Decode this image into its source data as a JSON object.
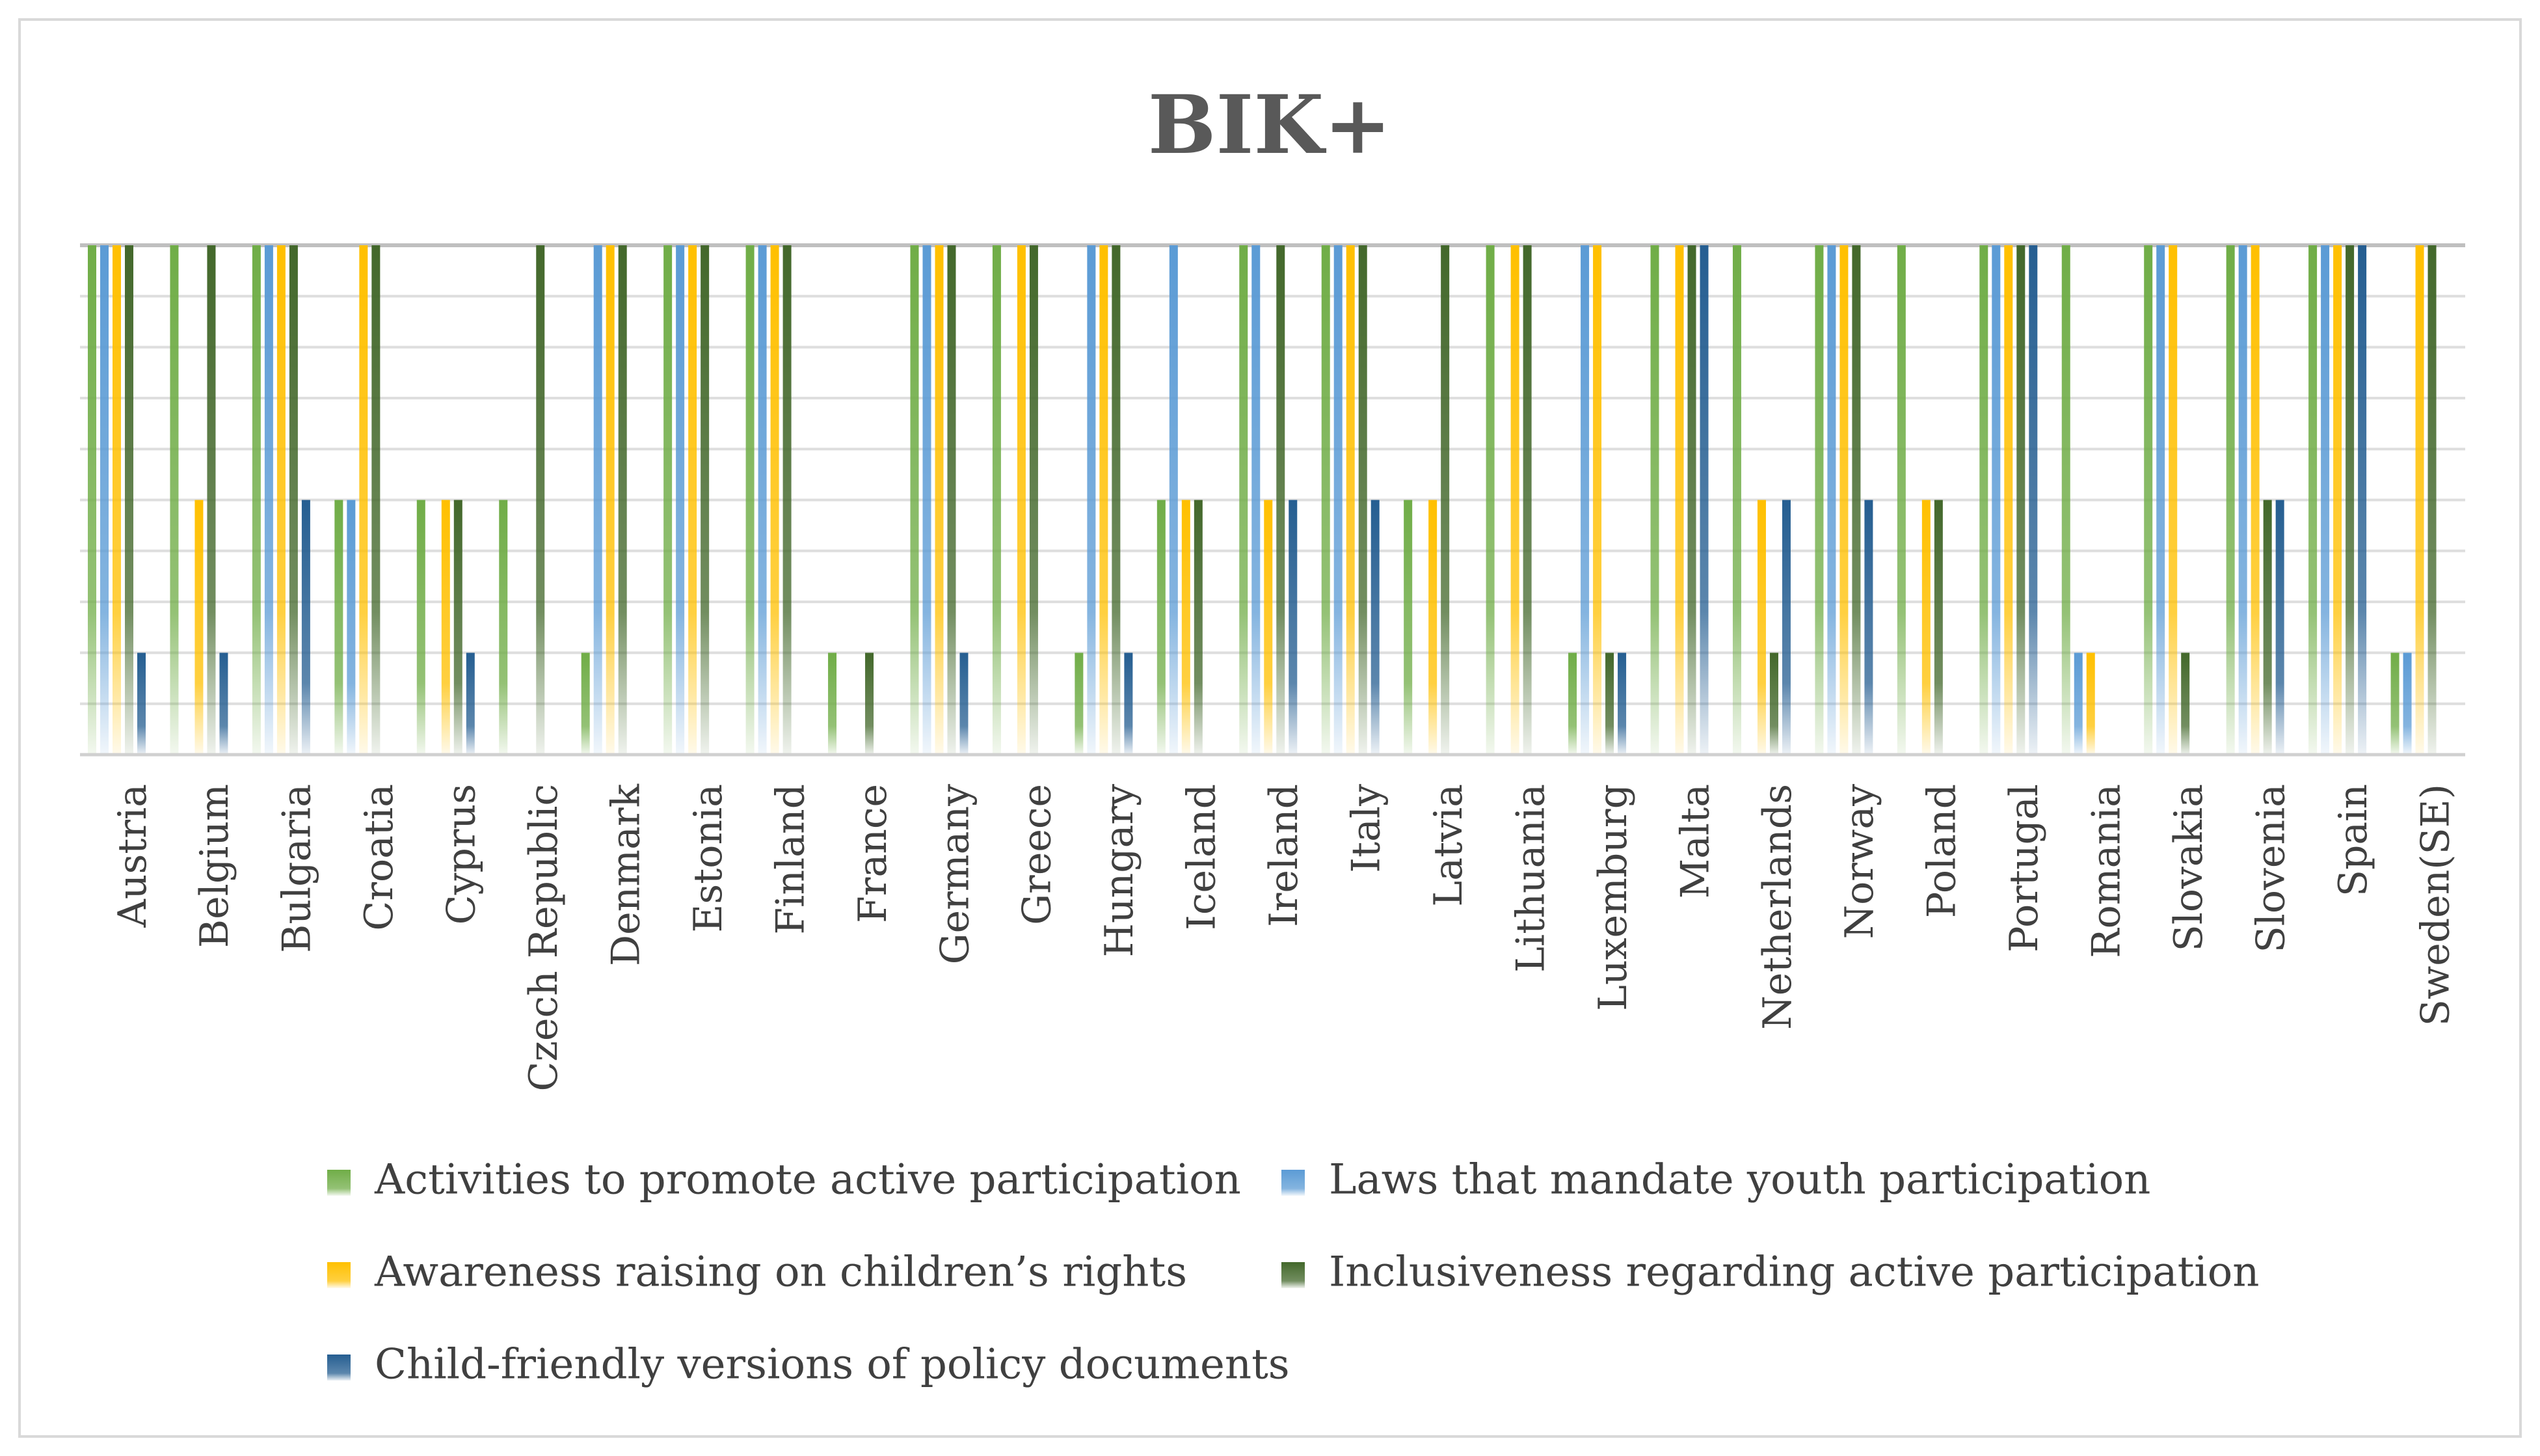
{
  "chart_data": {
    "type": "bar",
    "title": "BIK+",
    "xlabel": "",
    "ylabel": "",
    "ylim": [
      0,
      10
    ],
    "grid": true,
    "legend_position": "bottom",
    "categories": [
      "Austria",
      "Belgium",
      "Bulgaria",
      "Croatia",
      "Cyprus",
      "Czech Republic",
      "Denmark",
      "Estonia",
      "Finland",
      "France",
      "Germany",
      "Greece",
      "Hungary",
      "Iceland",
      "Ireland",
      "Italy",
      "Latvia",
      "Lithuania",
      "Luxemburg",
      "Malta",
      "Netherlands",
      "Norway",
      "Poland",
      "Portugal",
      "Romania",
      "Slovakia",
      "Slovenia",
      "Spain",
      "Sweden(SE)"
    ],
    "series": [
      {
        "name": "Activities to promote active participation",
        "color": "#70ad47",
        "values": [
          10,
          10,
          10,
          5,
          5,
          5,
          2,
          10,
          10,
          2,
          10,
          10,
          2,
          5,
          10,
          10,
          5,
          10,
          2,
          10,
          10,
          10,
          10,
          10,
          10,
          10,
          10,
          10,
          2
        ]
      },
      {
        "name": "Laws that mandate youth participation",
        "color": "#5b9bd5",
        "values": [
          10,
          0,
          10,
          5,
          0,
          0,
          10,
          10,
          10,
          0,
          10,
          0,
          10,
          10,
          10,
          10,
          0,
          0,
          10,
          0,
          0,
          10,
          0,
          10,
          2,
          10,
          10,
          10,
          2
        ]
      },
      {
        "name": "Awareness raising on children’s rights",
        "color": "#ffc000",
        "values": [
          10,
          5,
          10,
          10,
          5,
          0,
          10,
          10,
          10,
          0,
          10,
          10,
          10,
          5,
          5,
          10,
          5,
          10,
          10,
          10,
          5,
          10,
          5,
          10,
          2,
          10,
          10,
          10,
          10
        ]
      },
      {
        "name": "Inclusiveness regarding active participation",
        "color": "#43682b",
        "values": [
          10,
          10,
          10,
          10,
          5,
          10,
          10,
          10,
          10,
          2,
          10,
          10,
          10,
          5,
          10,
          10,
          10,
          10,
          2,
          10,
          2,
          10,
          5,
          10,
          0,
          2,
          5,
          10,
          10
        ]
      },
      {
        "name": "Child-friendly versions of policy documents",
        "color": "#255e91",
        "values": [
          2,
          2,
          5,
          0,
          2,
          0,
          0,
          0,
          0,
          0,
          2,
          0,
          2,
          0,
          5,
          5,
          0,
          0,
          2,
          10,
          5,
          5,
          0,
          10,
          0,
          0,
          5,
          10,
          0
        ]
      }
    ]
  }
}
